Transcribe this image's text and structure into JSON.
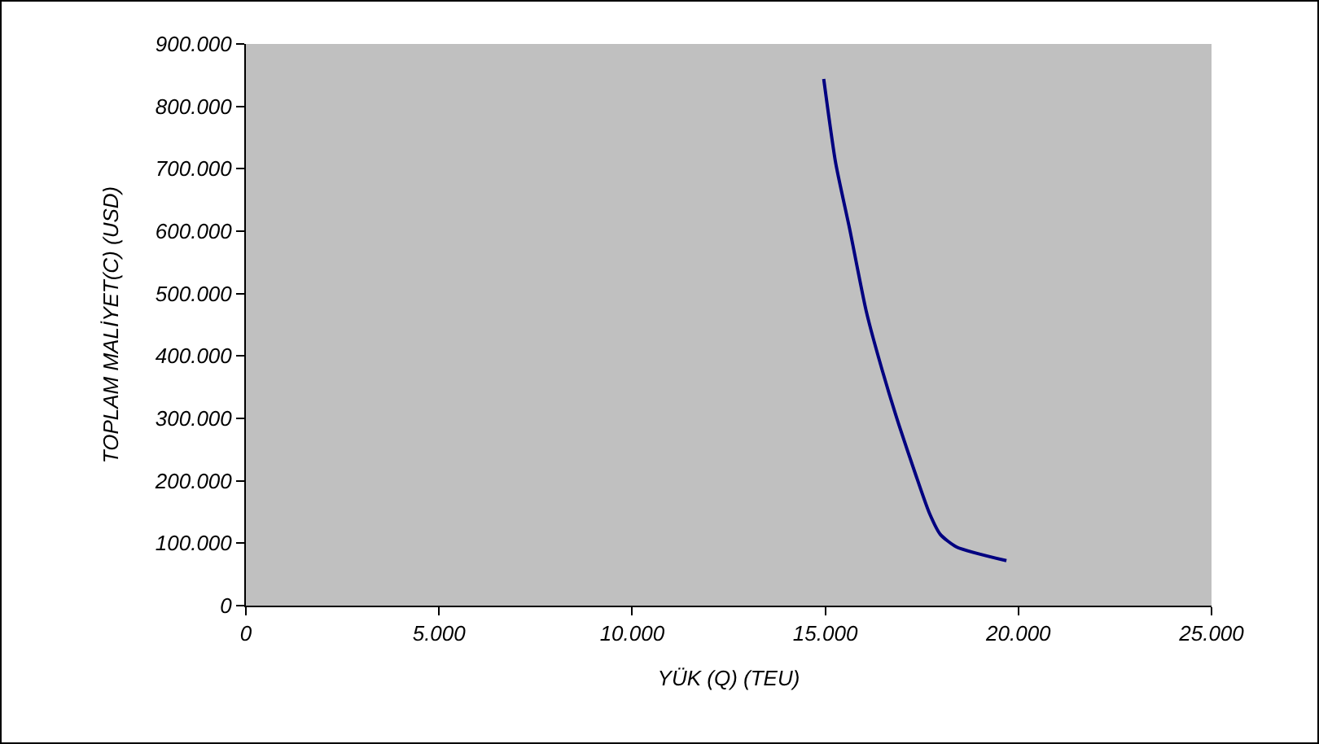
{
  "chart_data": {
    "type": "line",
    "xlabel": "YÜK (Q) (TEU)",
    "ylabel": "TOPLAM MALİYET(C) (USD)",
    "series": [
      {
        "color": "#000080",
        "x": [
          14960,
          15270,
          15630,
          16060,
          16480,
          16910,
          17340,
          17690,
          17980,
          18400,
          19690
        ],
        "values": [
          844000,
          709000,
          604000,
          472000,
          376000,
          289000,
          210000,
          149000,
          114000,
          94000,
          72000
        ]
      }
    ],
    "xlim": [
      0,
      25000
    ],
    "xticks": [
      {
        "value": 0,
        "label": "0"
      },
      {
        "value": 5000,
        "label": "5.000"
      },
      {
        "value": 10000,
        "label": "10.000"
      },
      {
        "value": 15000,
        "label": "15.000"
      },
      {
        "value": 20000,
        "label": "20.000"
      },
      {
        "value": 25000,
        "label": "25.000"
      }
    ],
    "ylim": [
      0,
      900000
    ],
    "yticks": [
      {
        "value": 0,
        "label": "0"
      },
      {
        "value": 100000,
        "label": "100.000"
      },
      {
        "value": 200000,
        "label": "200.000"
      },
      {
        "value": 300000,
        "label": "300.000"
      },
      {
        "value": 400000,
        "label": "400.000"
      },
      {
        "value": 500000,
        "label": "500.000"
      },
      {
        "value": 600000,
        "label": "600.000"
      },
      {
        "value": 700000,
        "label": "700.000"
      },
      {
        "value": 800000,
        "label": "800.000"
      },
      {
        "value": 900000,
        "label": "900.000"
      }
    ],
    "grid": false,
    "legend": false,
    "marker": "none",
    "line_style": "solid"
  }
}
